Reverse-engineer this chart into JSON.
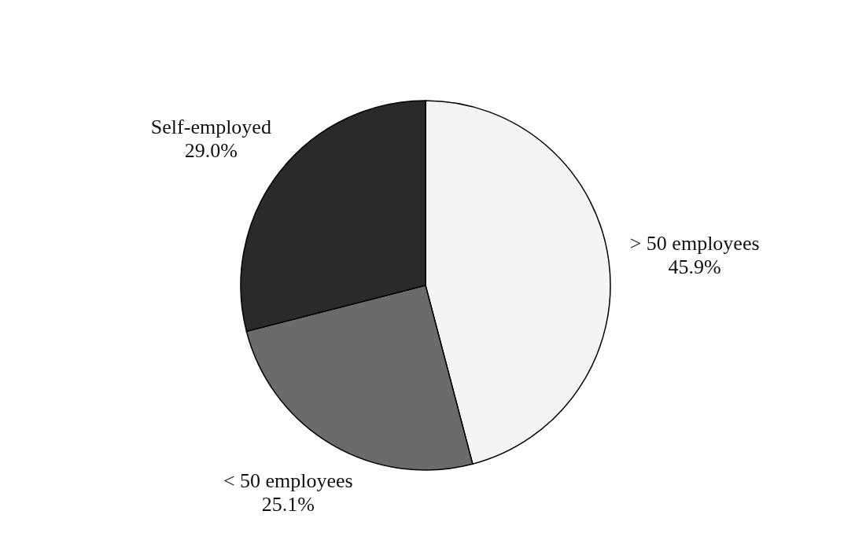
{
  "chart_data": {
    "type": "pie",
    "categories": [
      "> 50 employees",
      "< 50 employees",
      "Self-employed"
    ],
    "values": [
      45.9,
      25.1,
      29.0
    ],
    "value_labels": [
      "45.9%",
      "25.1%",
      "29.0%"
    ],
    "colors": [
      "#f4f4f4",
      "#6b6b6b",
      "#2a2a2a"
    ]
  }
}
